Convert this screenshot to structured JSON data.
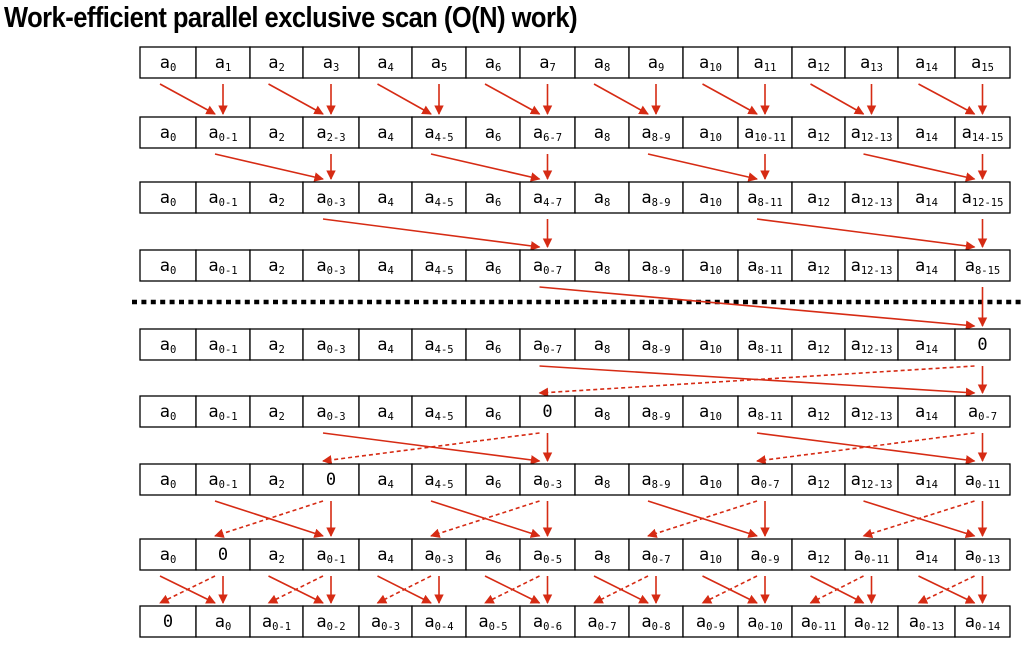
{
  "title": "Work-efficient parallel exclusive scan (O(N) work)",
  "colors": {
    "arrow": "#d62b14",
    "cell_border": "#000000",
    "divider": "#000000"
  },
  "rows": [
    {
      "cells": [
        [
          "a",
          "0"
        ],
        [
          "a",
          "1"
        ],
        [
          "a",
          "2"
        ],
        [
          "a",
          "3"
        ],
        [
          "a",
          "4"
        ],
        [
          "a",
          "5"
        ],
        [
          "a",
          "6"
        ],
        [
          "a",
          "7"
        ],
        [
          "a",
          "8"
        ],
        [
          "a",
          "9"
        ],
        [
          "a",
          "10"
        ],
        [
          "a",
          "11"
        ],
        [
          "a",
          "12"
        ],
        [
          "a",
          "13"
        ],
        [
          "a",
          "14"
        ],
        [
          "a",
          "15"
        ]
      ]
    },
    {
      "cells": [
        [
          "a",
          "0"
        ],
        [
          "a",
          "0-1"
        ],
        [
          "a",
          "2"
        ],
        [
          "a",
          "2-3"
        ],
        [
          "a",
          "4"
        ],
        [
          "a",
          "4-5"
        ],
        [
          "a",
          "6"
        ],
        [
          "a",
          "6-7"
        ],
        [
          "a",
          "8"
        ],
        [
          "a",
          "8-9"
        ],
        [
          "a",
          "10"
        ],
        [
          "a",
          "10-11"
        ],
        [
          "a",
          "12"
        ],
        [
          "a",
          "12-13"
        ],
        [
          "a",
          "14"
        ],
        [
          "a",
          "14-15"
        ]
      ]
    },
    {
      "cells": [
        [
          "a",
          "0"
        ],
        [
          "a",
          "0-1"
        ],
        [
          "a",
          "2"
        ],
        [
          "a",
          "0-3"
        ],
        [
          "a",
          "4"
        ],
        [
          "a",
          "4-5"
        ],
        [
          "a",
          "6"
        ],
        [
          "a",
          "4-7"
        ],
        [
          "a",
          "8"
        ],
        [
          "a",
          "8-9"
        ],
        [
          "a",
          "10"
        ],
        [
          "a",
          "8-11"
        ],
        [
          "a",
          "12"
        ],
        [
          "a",
          "12-13"
        ],
        [
          "a",
          "14"
        ],
        [
          "a",
          "12-15"
        ]
      ]
    },
    {
      "cells": [
        [
          "a",
          "0"
        ],
        [
          "a",
          "0-1"
        ],
        [
          "a",
          "2"
        ],
        [
          "a",
          "0-3"
        ],
        [
          "a",
          "4"
        ],
        [
          "a",
          "4-5"
        ],
        [
          "a",
          "6"
        ],
        [
          "a",
          "0-7"
        ],
        [
          "a",
          "8"
        ],
        [
          "a",
          "8-9"
        ],
        [
          "a",
          "10"
        ],
        [
          "a",
          "8-11"
        ],
        [
          "a",
          "12"
        ],
        [
          "a",
          "12-13"
        ],
        [
          "a",
          "14"
        ],
        [
          "a",
          "8-15"
        ]
      ]
    },
    {
      "cells": [
        [
          "a",
          "0"
        ],
        [
          "a",
          "0-1"
        ],
        [
          "a",
          "2"
        ],
        [
          "a",
          "0-3"
        ],
        [
          "a",
          "4"
        ],
        [
          "a",
          "4-5"
        ],
        [
          "a",
          "6"
        ],
        [
          "a",
          "0-7"
        ],
        [
          "a",
          "8"
        ],
        [
          "a",
          "8-9"
        ],
        [
          "a",
          "10"
        ],
        [
          "a",
          "8-11"
        ],
        [
          "a",
          "12"
        ],
        [
          "a",
          "12-13"
        ],
        [
          "a",
          "14"
        ],
        [
          "0",
          ""
        ]
      ]
    },
    {
      "cells": [
        [
          "a",
          "0"
        ],
        [
          "a",
          "0-1"
        ],
        [
          "a",
          "2"
        ],
        [
          "a",
          "0-3"
        ],
        [
          "a",
          "4"
        ],
        [
          "a",
          "4-5"
        ],
        [
          "a",
          "6"
        ],
        [
          "0",
          ""
        ],
        [
          "a",
          "8"
        ],
        [
          "a",
          "8-9"
        ],
        [
          "a",
          "10"
        ],
        [
          "a",
          "8-11"
        ],
        [
          "a",
          "12"
        ],
        [
          "a",
          "12-13"
        ],
        [
          "a",
          "14"
        ],
        [
          "a",
          "0-7"
        ]
      ]
    },
    {
      "cells": [
        [
          "a",
          "0"
        ],
        [
          "a",
          "0-1"
        ],
        [
          "a",
          "2"
        ],
        [
          "0",
          ""
        ],
        [
          "a",
          "4"
        ],
        [
          "a",
          "4-5"
        ],
        [
          "a",
          "6"
        ],
        [
          "a",
          "0-3"
        ],
        [
          "a",
          "8"
        ],
        [
          "a",
          "8-9"
        ],
        [
          "a",
          "10"
        ],
        [
          "a",
          "0-7"
        ],
        [
          "a",
          "12"
        ],
        [
          "a",
          "12-13"
        ],
        [
          "a",
          "14"
        ],
        [
          "a",
          "0-11"
        ]
      ]
    },
    {
      "cells": [
        [
          "a",
          "0"
        ],
        [
          "0",
          ""
        ],
        [
          "a",
          "2"
        ],
        [
          "a",
          "0-1"
        ],
        [
          "a",
          "4"
        ],
        [
          "a",
          "0-3"
        ],
        [
          "a",
          "6"
        ],
        [
          "a",
          "0-5"
        ],
        [
          "a",
          "8"
        ],
        [
          "a",
          "0-7"
        ],
        [
          "a",
          "10"
        ],
        [
          "a",
          "0-9"
        ],
        [
          "a",
          "12"
        ],
        [
          "a",
          "0-11"
        ],
        [
          "a",
          "14"
        ],
        [
          "a",
          "0-13"
        ]
      ]
    },
    {
      "cells": [
        [
          "0",
          ""
        ],
        [
          "a",
          "0"
        ],
        [
          "a",
          "0-1"
        ],
        [
          "a",
          "0-2"
        ],
        [
          "a",
          "0-3"
        ],
        [
          "a",
          "0-4"
        ],
        [
          "a",
          "0-5"
        ],
        [
          "a",
          "0-6"
        ],
        [
          "a",
          "0-7"
        ],
        [
          "a",
          "0-8"
        ],
        [
          "a",
          "0-9"
        ],
        [
          "a",
          "0-10"
        ],
        [
          "a",
          "0-11"
        ],
        [
          "a",
          "0-12"
        ],
        [
          "a",
          "0-13"
        ],
        [
          "a",
          "0-14"
        ]
      ]
    }
  ]
}
